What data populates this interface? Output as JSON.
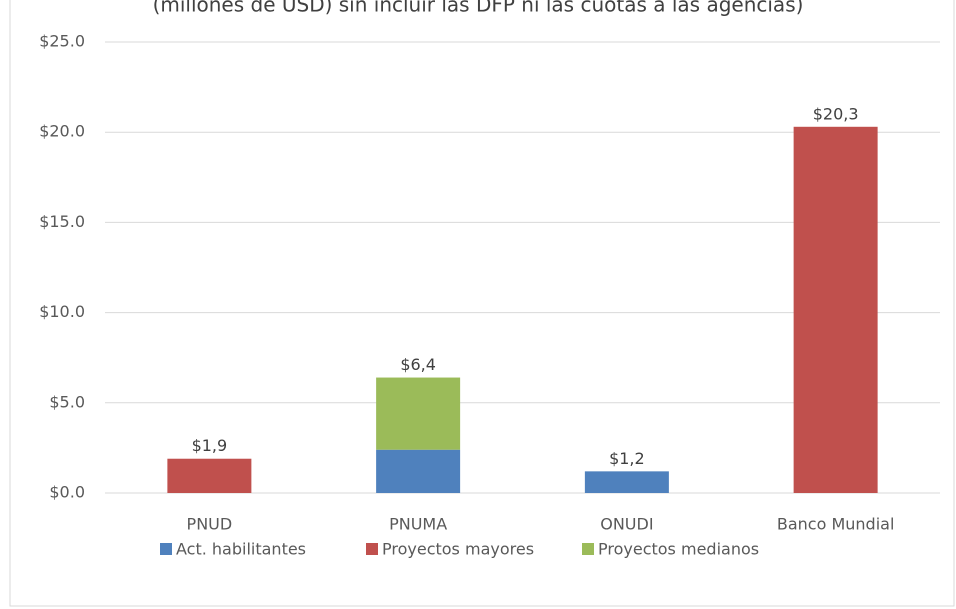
{
  "chart_data": {
    "type": "stacked_bar",
    "title": "(millones de USD) sin incluir las DFP ni las cuotas a las agencias)",
    "categories": [
      "PNUD",
      "PNUMA",
      "ONUDI",
      "Banco Mundial"
    ],
    "series": [
      {
        "name": "Act. habilitantes",
        "color": "#4f81bd",
        "values": [
          0,
          2.4,
          1.2,
          0
        ]
      },
      {
        "name": "Proyectos mayores",
        "color": "#c0504d",
        "values": [
          1.9,
          0,
          0,
          20.3
        ]
      },
      {
        "name": "Proyectos medianos",
        "color": "#9bbb59",
        "values": [
          0,
          4.0,
          0,
          0
        ]
      }
    ],
    "totals": [
      1.9,
      6.4,
      1.2,
      20.3
    ],
    "total_labels": [
      "$1,9",
      "$6,4",
      "$1,2",
      "$20,3"
    ],
    "ylim": [
      0,
      25
    ],
    "yticks": [
      {
        "value": 0,
        "label": "$0.0"
      },
      {
        "value": 5,
        "label": "$5.0"
      },
      {
        "value": 10,
        "label": "$10.0"
      },
      {
        "value": 15,
        "label": "$15.0"
      },
      {
        "value": 20,
        "label": "$20.0"
      },
      {
        "value": 25,
        "label": "$25.0"
      }
    ],
    "grid": true,
    "legend": "bottom"
  }
}
